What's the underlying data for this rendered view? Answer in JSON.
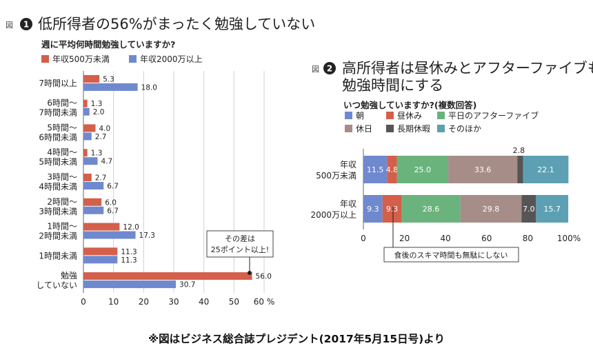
{
  "colors": {
    "orange": "#d45f4a",
    "blue": "#6f89cf",
    "seg": [
      "#6f89cf",
      "#d45f4a",
      "#6ab37d",
      "#a68d87",
      "#555555",
      "#5da0b3"
    ]
  },
  "figure1": {
    "fig_label": "図",
    "badge": "1",
    "title": "低所得者の56%がまったく勉強していない",
    "subtitle": "週に平均何時間勉強していますか?",
    "callout": [
      "その差は",
      "25ポイント以上!"
    ],
    "tick_unit": "%",
    "chart_data": {
      "type": "bar",
      "orientation": "horizontal",
      "categories": [
        [
          "7時間以上"
        ],
        [
          "6時間〜",
          "7時間未満"
        ],
        [
          "5時間〜",
          "6時間未満"
        ],
        [
          "4時間〜",
          "5時間未満"
        ],
        [
          "3時間〜",
          "4時間未満"
        ],
        [
          "2時間〜",
          "3時間未満"
        ],
        [
          "1時間〜",
          "2時間未満"
        ],
        [
          "1時間未満"
        ],
        [
          "勉強",
          "していない"
        ]
      ],
      "series": [
        {
          "name": "年収500万未満",
          "values": [
            5.3,
            1.3,
            4.0,
            1.3,
            2.7,
            6.0,
            12.0,
            11.3,
            56.0
          ]
        },
        {
          "name": "年収2000万以上",
          "values": [
            18.0,
            2.0,
            2.7,
            4.7,
            6.7,
            6.7,
            17.3,
            11.3,
            30.7
          ]
        }
      ],
      "xlim": [
        0,
        60
      ],
      "xticks": [
        0,
        10,
        20,
        30,
        40,
        50,
        60
      ],
      "grid": true,
      "legend": "top-left"
    }
  },
  "figure2": {
    "fig_label": "図",
    "badge": "2",
    "title_lines": [
      "高所得者は昼休みとアフターファイブも",
      "勉強時間にする"
    ],
    "subtitle": "いつ勉強していますか?(複数回答)",
    "callout": "食後のスキマ時間も無駄にしない",
    "chart_data": {
      "type": "bar",
      "orientation": "horizontal",
      "stacked": true,
      "categories": [
        [
          "年収",
          "500万未満"
        ],
        [
          "年収",
          "2000万以上"
        ]
      ],
      "series": [
        {
          "name": "朝",
          "values": [
            11.5,
            9.3
          ]
        },
        {
          "name": "昼休み",
          "values": [
            4.8,
            9.3
          ]
        },
        {
          "name": "平日のアフターファイブ",
          "values": [
            25.0,
            28.6
          ]
        },
        {
          "name": "休日",
          "values": [
            33.6,
            29.8
          ]
        },
        {
          "name": "長期休暇",
          "values": [
            2.8,
            7.0
          ]
        },
        {
          "name": "そのほか",
          "values": [
            22.1,
            15.7
          ]
        }
      ],
      "xlim": [
        0,
        100
      ],
      "xticks": [
        "0",
        "20",
        "40",
        "60",
        "80",
        "100%"
      ],
      "grid": false,
      "legend": "top-left"
    }
  },
  "footer": "※図はビジネス総合誌プレジデント(2017年5月15日号)より"
}
